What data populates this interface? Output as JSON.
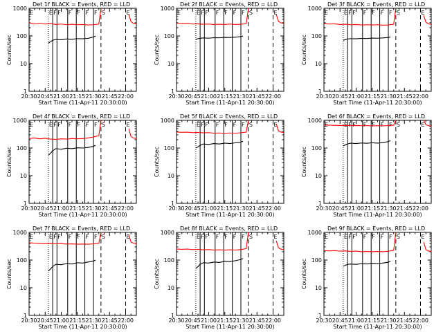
{
  "panel_titles": [
    "Det 1f BLACK = Events, RED = LLD",
    "Det 2f BLACK = Events, RED = LLD",
    "Det 3f BLACK = Events, RED = LLD",
    "Det 4f BLACK = Events, RED = LLD",
    "Det 5f BLACK = Events, RED = LLD",
    "Det 6f BLACK = Events, RED = LLD",
    "Det 7f BLACK = Events, RED = LLD",
    "Det 8f BLACK = Events, RED = LLD",
    "Det 9f BLACK = Events, RED = LLD"
  ],
  "xlabel": "Start Time (11-Apr-11 20:30:00)",
  "ylabel": "Counts/sec",
  "x_tick_labels": [
    "20:30",
    "20:45",
    "21:00",
    "21:15",
    "21:30",
    "21:45",
    "22:00"
  ],
  "y_tick_labels": [
    "1",
    "10",
    "100",
    "1000"
  ],
  "markers": [
    {
      "label": "E",
      "minute": 0,
      "style": "dotted"
    },
    {
      "label": "E",
      "minute": 18,
      "style": "dotted"
    },
    {
      "label": "F",
      "minute": 22,
      "style": "solid"
    },
    {
      "label": "F",
      "minute": 26,
      "style": "solid"
    },
    {
      "label": "F",
      "minute": 36,
      "style": "solid"
    },
    {
      "label": "F",
      "minute": 44,
      "style": "solid"
    },
    {
      "label": "F",
      "minute": 52,
      "style": "solid"
    },
    {
      "label": "F",
      "minute": 60,
      "style": "solid"
    },
    {
      "label": "S",
      "minute": 67,
      "style": "dashed"
    },
    {
      "label": "E",
      "minute": 90,
      "style": "dashed"
    }
  ],
  "colors": {
    "events": "#000000",
    "lld": "#ff0000",
    "axes": "#000000"
  },
  "chart_data": [
    {
      "type": "line",
      "title": "Det 1f BLACK = Events, RED = LLD",
      "xlabel": "Start Time (11-Apr-11 20:30:00)",
      "ylabel": "Counts/sec",
      "x_unit": "minutes since 20:30",
      "xlim": [
        0,
        100
      ],
      "ylim": [
        1,
        1000
      ],
      "y_scale": "log",
      "series": [
        {
          "name": "LLD",
          "color": "#ff0000",
          "x": [
            0,
            5,
            10,
            15,
            20,
            25,
            30,
            35,
            40,
            45,
            50,
            55,
            60,
            65,
            67
          ],
          "values": [
            300,
            270,
            290,
            270,
            280,
            260,
            270,
            255,
            265,
            255,
            260,
            250,
            255,
            270,
            1000
          ]
        },
        {
          "name": "LLD",
          "color": "#ff0000",
          "x": [
            93,
            95,
            97,
            100
          ],
          "values": [
            600,
            330,
            290,
            270
          ]
        },
        {
          "name": "Events",
          "color": "#000000",
          "x": [
            18,
            20,
            22,
            25,
            30,
            35,
            40,
            45,
            50,
            55,
            60,
            62
          ],
          "values": [
            55,
            62,
            70,
            75,
            73,
            78,
            76,
            80,
            79,
            82,
            92,
            100
          ]
        }
      ]
    },
    {
      "type": "line",
      "title": "Det 2f BLACK = Events, RED = LLD",
      "xlabel": "Start Time (11-Apr-11 20:30:00)",
      "ylabel": "Counts/sec",
      "x_unit": "minutes since 20:30",
      "xlim": [
        0,
        100
      ],
      "ylim": [
        1,
        1000
      ],
      "y_scale": "log",
      "series": [
        {
          "name": "LLD",
          "color": "#ff0000",
          "x": [
            0,
            5,
            10,
            15,
            20,
            25,
            30,
            35,
            40,
            45,
            50,
            55,
            60,
            65,
            67
          ],
          "values": [
            290,
            280,
            285,
            270,
            275,
            265,
            270,
            260,
            265,
            260,
            270,
            260,
            265,
            280,
            1000
          ]
        },
        {
          "name": "LLD",
          "color": "#ff0000",
          "x": [
            93,
            95,
            97,
            100
          ],
          "values": [
            600,
            340,
            300,
            280
          ]
        },
        {
          "name": "Events",
          "color": "#000000",
          "x": [
            18,
            20,
            22,
            25,
            30,
            35,
            40,
            45,
            50,
            55,
            60,
            62
          ],
          "values": [
            75,
            80,
            82,
            85,
            83,
            87,
            86,
            89,
            88,
            91,
            95,
            100
          ]
        }
      ]
    },
    {
      "type": "line",
      "title": "Det 3f BLACK = Events, RED = LLD",
      "xlabel": "Start Time (11-Apr-11 20:30:00)",
      "ylabel": "Counts/sec",
      "x_unit": "minutes since 20:30",
      "xlim": [
        0,
        100
      ],
      "ylim": [
        1,
        1000
      ],
      "y_scale": "log",
      "series": [
        {
          "name": "LLD",
          "color": "#ff0000",
          "x": [
            0,
            5,
            10,
            15,
            20,
            25,
            30,
            35,
            40,
            45,
            50,
            55,
            60,
            65,
            67
          ],
          "values": [
            280,
            270,
            275,
            260,
            265,
            255,
            260,
            250,
            255,
            250,
            255,
            245,
            250,
            265,
            1000
          ]
        },
        {
          "name": "LLD",
          "color": "#ff0000",
          "x": [
            93,
            95,
            97,
            100
          ],
          "values": [
            550,
            320,
            280,
            260
          ]
        },
        {
          "name": "Events",
          "color": "#000000",
          "x": [
            18,
            20,
            22,
            25,
            30,
            35,
            40,
            45,
            50,
            55,
            60,
            62
          ],
          "values": [
            70,
            74,
            78,
            80,
            79,
            82,
            81,
            84,
            83,
            85,
            88,
            92
          ]
        }
      ]
    },
    {
      "type": "line",
      "title": "Det 4f BLACK = Events, RED = LLD",
      "xlabel": "Start Time (11-Apr-11 20:30:00)",
      "ylabel": "Counts/sec",
      "x_unit": "minutes since 20:30",
      "xlim": [
        0,
        100
      ],
      "ylim": [
        1,
        1000
      ],
      "y_scale": "log",
      "series": [
        {
          "name": "LLD",
          "color": "#ff0000",
          "x": [
            0,
            5,
            10,
            15,
            20,
            25,
            30,
            35,
            40,
            45,
            50,
            55,
            60,
            65,
            67
          ],
          "values": [
            220,
            230,
            215,
            225,
            210,
            205,
            215,
            210,
            220,
            215,
            220,
            230,
            250,
            280,
            1000
          ]
        },
        {
          "name": "LLD",
          "color": "#ff0000",
          "x": [
            93,
            95,
            97,
            100
          ],
          "values": [
            500,
            260,
            230,
            220
          ]
        },
        {
          "name": "Events",
          "color": "#000000",
          "x": [
            18,
            20,
            22,
            25,
            30,
            35,
            40,
            45,
            50,
            55,
            60,
            62
          ],
          "values": [
            55,
            65,
            80,
            95,
            90,
            98,
            95,
            102,
            100,
            105,
            115,
            125
          ]
        }
      ]
    },
    {
      "type": "line",
      "title": "Det 5f BLACK = Events, RED = LLD",
      "xlabel": "Start Time (11-Apr-11 20:30:00)",
      "ylabel": "Counts/sec",
      "x_unit": "minutes since 20:30",
      "xlim": [
        0,
        100
      ],
      "ylim": [
        1,
        1000
      ],
      "y_scale": "log",
      "series": [
        {
          "name": "LLD",
          "color": "#ff0000",
          "x": [
            0,
            5,
            10,
            15,
            20,
            25,
            30,
            35,
            40,
            45,
            50,
            55,
            60,
            65,
            67
          ],
          "values": [
            380,
            370,
            375,
            360,
            365,
            355,
            360,
            345,
            350,
            340,
            350,
            345,
            355,
            375,
            1000
          ]
        },
        {
          "name": "LLD",
          "color": "#ff0000",
          "x": [
            93,
            95,
            97,
            100
          ],
          "values": [
            750,
            420,
            380,
            360
          ]
        },
        {
          "name": "Events",
          "color": "#000000",
          "x": [
            18,
            20,
            22,
            25,
            30,
            35,
            40,
            45,
            50,
            55,
            60,
            62
          ],
          "values": [
            100,
            110,
            125,
            140,
            135,
            145,
            140,
            150,
            145,
            155,
            165,
            175
          ]
        }
      ]
    },
    {
      "type": "line",
      "title": "Det 6f BLACK = Events, RED = LLD",
      "xlabel": "Start Time (11-Apr-11 20:30:00)",
      "ylabel": "Counts/sec",
      "x_unit": "minutes since 20:30",
      "xlim": [
        0,
        100
      ],
      "ylim": [
        1,
        1000
      ],
      "y_scale": "log",
      "series": [
        {
          "name": "LLD",
          "color": "#ff0000",
          "x": [
            0,
            5,
            10,
            15,
            20,
            25,
            30,
            35,
            40,
            45,
            50,
            55,
            60,
            65,
            67
          ],
          "values": [
            680,
            670,
            660,
            650,
            655,
            645,
            650,
            640,
            645,
            635,
            640,
            635,
            645,
            670,
            1000
          ]
        },
        {
          "name": "LLD",
          "color": "#ff0000",
          "x": [
            93,
            95,
            97,
            100
          ],
          "values": [
            1000,
            700,
            650,
            620
          ]
        },
        {
          "name": "Events",
          "color": "#000000",
          "x": [
            18,
            20,
            22,
            25,
            30,
            35,
            40,
            45,
            50,
            55,
            60,
            62
          ],
          "values": [
            120,
            130,
            140,
            150,
            145,
            152,
            148,
            155,
            150,
            158,
            170,
            185
          ]
        }
      ]
    },
    {
      "type": "line",
      "title": "Det 7f BLACK = Events, RED = LLD",
      "xlabel": "Start Time (11-Apr-11 20:30:00)",
      "ylabel": "Counts/sec",
      "x_unit": "minutes since 20:30",
      "xlim": [
        0,
        100
      ],
      "ylim": [
        1,
        1000
      ],
      "y_scale": "log",
      "series": [
        {
          "name": "LLD",
          "color": "#ff0000",
          "x": [
            0,
            5,
            10,
            15,
            20,
            25,
            30,
            35,
            40,
            45,
            50,
            55,
            60,
            65,
            67
          ],
          "values": [
            420,
            410,
            400,
            390,
            395,
            385,
            390,
            380,
            385,
            375,
            380,
            375,
            385,
            400,
            1000
          ]
        },
        {
          "name": "LLD",
          "color": "#ff0000",
          "x": [
            93,
            95,
            97,
            100
          ],
          "values": [
            800,
            450,
            410,
            390
          ]
        },
        {
          "name": "Events",
          "color": "#000000",
          "x": [
            18,
            20,
            22,
            25,
            30,
            35,
            40,
            45,
            50,
            55,
            60,
            62
          ],
          "values": [
            40,
            48,
            58,
            70,
            68,
            75,
            72,
            80,
            78,
            85,
            92,
            100
          ]
        }
      ]
    },
    {
      "type": "line",
      "title": "Det 8f BLACK = Events, RED = LLD",
      "xlabel": "Start Time (11-Apr-11 20:30:00)",
      "ylabel": "Counts/sec",
      "x_unit": "minutes since 20:30",
      "xlim": [
        0,
        100
      ],
      "ylim": [
        1,
        1000
      ],
      "y_scale": "log",
      "series": [
        {
          "name": "LLD",
          "color": "#ff0000",
          "x": [
            0,
            5,
            10,
            15,
            20,
            25,
            30,
            35,
            40,
            45,
            50,
            55,
            60,
            65,
            67
          ],
          "values": [
            250,
            245,
            250,
            240,
            245,
            235,
            240,
            230,
            235,
            230,
            235,
            230,
            240,
            260,
            1000
          ]
        },
        {
          "name": "LLD",
          "color": "#ff0000",
          "x": [
            93,
            95,
            97,
            100
          ],
          "values": [
            500,
            280,
            250,
            240
          ]
        },
        {
          "name": "Events",
          "color": "#000000",
          "x": [
            18,
            20,
            22,
            25,
            30,
            35,
            40,
            45,
            50,
            55,
            60,
            62
          ],
          "values": [
            50,
            58,
            70,
            80,
            78,
            85,
            82,
            90,
            88,
            95,
            105,
            115
          ]
        }
      ]
    },
    {
      "type": "line",
      "title": "Det 9f BLACK = Events, RED = LLD",
      "xlabel": "Start Time (11-Apr-11 20:30:00)",
      "ylabel": "Counts/sec",
      "x_unit": "minutes since 20:30",
      "xlim": [
        0,
        100
      ],
      "ylim": [
        1,
        1000
      ],
      "y_scale": "log",
      "series": [
        {
          "name": "LLD",
          "color": "#ff0000",
          "x": [
            0,
            5,
            10,
            15,
            20,
            25,
            30,
            35,
            40,
            45,
            50,
            55,
            60,
            65,
            67
          ],
          "values": [
            220,
            215,
            220,
            210,
            215,
            205,
            210,
            200,
            205,
            200,
            205,
            200,
            210,
            225,
            1000
          ]
        },
        {
          "name": "LLD",
          "color": "#ff0000",
          "x": [
            93,
            95,
            97,
            100
          ],
          "values": [
            450,
            240,
            215,
            205
          ]
        },
        {
          "name": "Events",
          "color": "#000000",
          "x": [
            18,
            20,
            22,
            25,
            30,
            35,
            40,
            45,
            50,
            55,
            60,
            62
          ],
          "values": [
            60,
            65,
            70,
            72,
            70,
            74,
            72,
            76,
            75,
            78,
            84,
            90
          ]
        }
      ]
    }
  ]
}
